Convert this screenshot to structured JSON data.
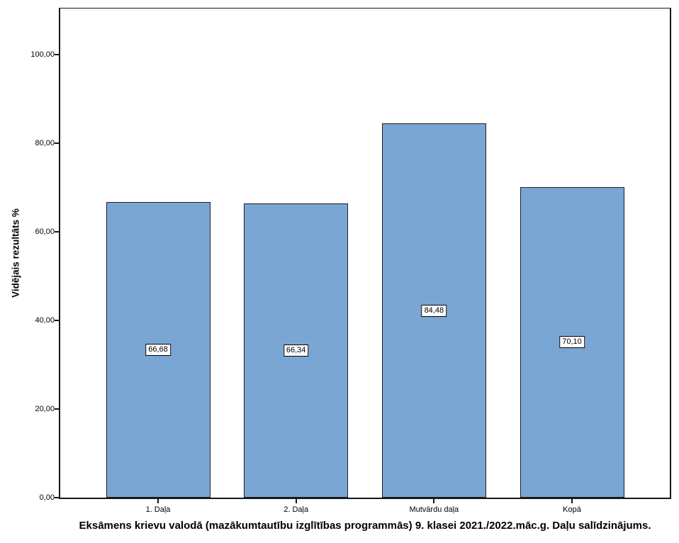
{
  "chart_data": {
    "type": "bar",
    "title": "Eksāmens krievu valodā (mazākumtautību izglītības programmās) 9. klasei 2021./2022.māc.g. Daļu salīdzinājums.",
    "ylabel": "Vidējais rezultāts %",
    "xlabel": "",
    "categories": [
      "1. Daļa",
      "2. Daļa",
      "Mutvārdu daļa",
      "Kopā"
    ],
    "values": [
      66.68,
      66.34,
      84.48,
      70.1
    ],
    "value_labels": [
      "66,68",
      "66,34",
      "84,48",
      "70,10"
    ],
    "y_ticks": [
      {
        "value": 0,
        "label": "0,00"
      },
      {
        "value": 20,
        "label": "20,00"
      },
      {
        "value": 40,
        "label": "40,00"
      },
      {
        "value": 60,
        "label": "60,00"
      },
      {
        "value": 80,
        "label": "80,00"
      },
      {
        "value": 100,
        "label": "100,00"
      }
    ],
    "ylim": [
      0,
      110.4
    ],
    "grid": false,
    "legend": "none",
    "colors": {
      "bar_fill": "#7AA6D4",
      "bar_border": "#1E1E1E",
      "axis": "#161616",
      "background": "#FFFFFF",
      "label_box_fill": "#FFFFFF",
      "label_box_border": "#000000"
    }
  }
}
